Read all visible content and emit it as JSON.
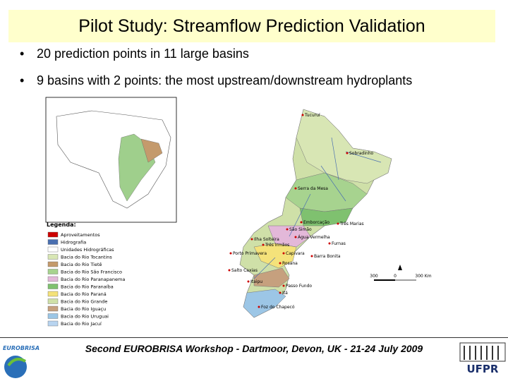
{
  "header": {
    "title": "Pilot Study: Streamflow Prediction Validation"
  },
  "bullets": [
    "20 prediction points in 11 large basins",
    "9 basins with 2 points: the most upstream/downstream hydroplants"
  ],
  "map": {
    "legend_title": "Legenda:",
    "legend_items": [
      "Aproveitamentos",
      "Hidrografia",
      "Unidades Hidrográficas",
      "Bacia do Rio Tocantins",
      "Bacia do Rio Tietê",
      "Bacia do Rio São Francisco",
      "Bacia do Rio Paranapanema",
      "Bacia do Rio Paranaíba",
      "Bacia do Rio Paraná",
      "Bacia do Rio Grande",
      "Bacia do Rio Iguaçu",
      "Bacia do Rio Uruguai",
      "Bacia do Rio Jacuí"
    ],
    "places": [
      "Tucuruí",
      "Sobradinho",
      "Serra da Mesa",
      "Emborcação",
      "Três Marias",
      "São Simão",
      "Água Vermelha",
      "Ilha Solteira",
      "Furnas",
      "Três Irmãos",
      "Porto Primavera",
      "Capivara",
      "Barra Bonita",
      "Rosana",
      "Salto Caxias",
      "Itaipu",
      "Passo Fundo",
      "Itá",
      "Foz do Chapecó"
    ],
    "scale": [
      "300",
      "0",
      "300 Km"
    ]
  },
  "footer": {
    "text": "Second EUROBRISA Workshop - Dartmoor, Devon, UK - 21-24 July 2009",
    "logo_left": "EUROBRISA",
    "logo_right": "UFPR"
  }
}
